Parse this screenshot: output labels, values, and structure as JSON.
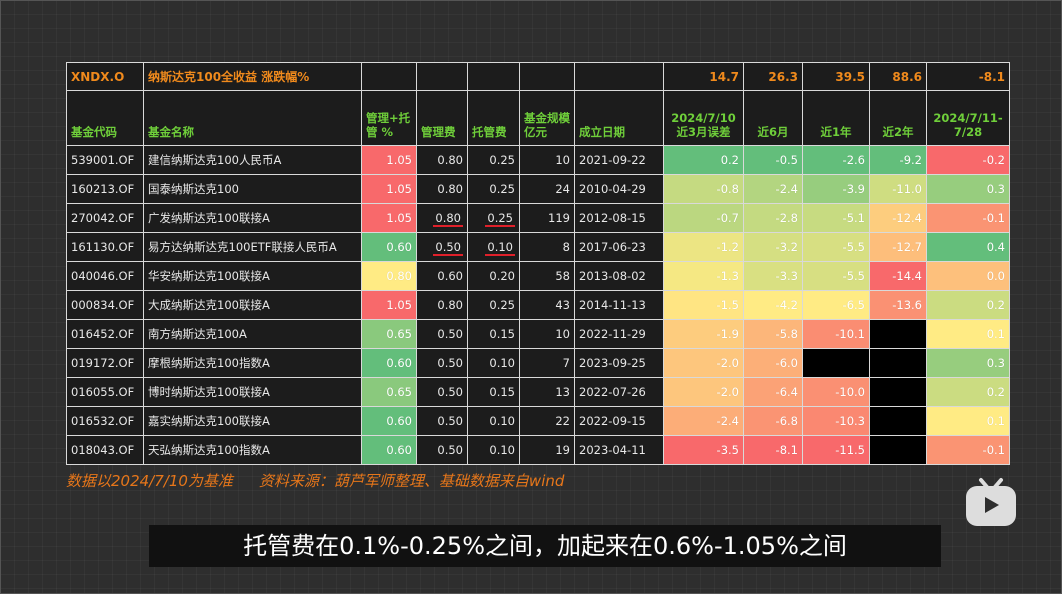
{
  "table": {
    "ticker": "XNDX.O",
    "index_name": "纳斯达克100全收益  涨跌幅%",
    "index_returns": [
      "14.7",
      "26.3",
      "39.5",
      "88.6",
      "-8.1"
    ],
    "headers": [
      "基金代码",
      "基金名称",
      "管理+托管 %",
      "管理费",
      "托管费",
      "基金规模 亿元",
      "成立日期",
      "2024/7/10 近3月误差",
      "近6月",
      "近1年",
      "近2年",
      "2024/7/11-7/28"
    ],
    "rows": [
      {
        "code": "539001.OF",
        "name": "建信纳斯达克100人民币A",
        "total": "1.05",
        "mgmt": "0.80",
        "cust": "0.25",
        "size": "10",
        "date": "2021-09-22",
        "err3m": "0.2",
        "m6": "-0.5",
        "y1": "-2.6",
        "y2": "-9.2",
        "recent": "-0.2"
      },
      {
        "code": "160213.OF",
        "name": "国泰纳斯达克100",
        "total": "1.05",
        "mgmt": "0.80",
        "cust": "0.25",
        "size": "24",
        "date": "2010-04-29",
        "err3m": "-0.8",
        "m6": "-2.4",
        "y1": "-3.9",
        "y2": "-11.0",
        "recent": "0.3"
      },
      {
        "code": "270042.OF",
        "name": "广发纳斯达克100联接A",
        "total": "1.05",
        "mgmt": "0.80",
        "cust": "0.25",
        "size": "119",
        "date": "2012-08-15",
        "err3m": "-0.7",
        "m6": "-2.8",
        "y1": "-5.1",
        "y2": "-12.4",
        "recent": "-0.1"
      },
      {
        "code": "161130.OF",
        "name": "易方达纳斯达克100ETF联接人民币A",
        "total": "0.60",
        "mgmt": "0.50",
        "cust": "0.10",
        "size": "8",
        "date": "2017-06-23",
        "err3m": "-1.2",
        "m6": "-3.2",
        "y1": "-5.5",
        "y2": "-12.7",
        "recent": "0.4"
      },
      {
        "code": "040046.OF",
        "name": "华安纳斯达克100联接A",
        "total": "0.80",
        "mgmt": "0.60",
        "cust": "0.20",
        "size": "58",
        "date": "2013-08-02",
        "err3m": "-1.3",
        "m6": "-3.3",
        "y1": "-5.5",
        "y2": "-14.4",
        "recent": "0.0"
      },
      {
        "code": "000834.OF",
        "name": "大成纳斯达克100联接A",
        "total": "1.05",
        "mgmt": "0.80",
        "cust": "0.25",
        "size": "43",
        "date": "2014-11-13",
        "err3m": "-1.5",
        "m6": "-4.2",
        "y1": "-6.5",
        "y2": "-13.6",
        "recent": "0.2"
      },
      {
        "code": "016452.OF",
        "name": "南方纳斯达克100A",
        "total": "0.65",
        "mgmt": "0.50",
        "cust": "0.15",
        "size": "10",
        "date": "2022-11-29",
        "err3m": "-1.9",
        "m6": "-5.8",
        "y1": "-10.1",
        "y2": "",
        "recent": "0.1"
      },
      {
        "code": "019172.OF",
        "name": "摩根纳斯达克100指数A",
        "total": "0.60",
        "mgmt": "0.50",
        "cust": "0.10",
        "size": "7",
        "date": "2023-09-25",
        "err3m": "-2.0",
        "m6": "-6.0",
        "y1": "",
        "y2": "",
        "recent": "0.3"
      },
      {
        "code": "016055.OF",
        "name": "博时纳斯达克100联接A",
        "total": "0.65",
        "mgmt": "0.50",
        "cust": "0.15",
        "size": "13",
        "date": "2022-07-26",
        "err3m": "-2.0",
        "m6": "-6.4",
        "y1": "-10.0",
        "y2": "",
        "recent": "0.2"
      },
      {
        "code": "016532.OF",
        "name": "嘉实纳斯达克100联接A",
        "total": "0.60",
        "mgmt": "0.50",
        "cust": "0.10",
        "size": "22",
        "date": "2022-09-15",
        "err3m": "-2.4",
        "m6": "-6.8",
        "y1": "-10.3",
        "y2": "",
        "recent": "0.1"
      },
      {
        "code": "018043.OF",
        "name": "天弘纳斯达克100指数A",
        "total": "0.60",
        "mgmt": "0.50",
        "cust": "0.10",
        "size": "19",
        "date": "2023-04-11",
        "err3m": "-3.5",
        "m6": "-8.1",
        "y1": "-11.5",
        "y2": "",
        "recent": "-0.1"
      }
    ]
  },
  "note": {
    "basis": "数据以2024/7/10为基准",
    "source": "资料来源：葫芦军师整理、基础数据来自wind"
  },
  "subtitle": "托管费在0.1%-0.25%之间，加起来在0.6%-1.05%之间",
  "colors": {
    "green": "#63be7b",
    "yellow": "#ffeb84",
    "red": "#f8696b",
    "header_green": "#6fcf3a",
    "orange_text": "#f08a1c"
  }
}
